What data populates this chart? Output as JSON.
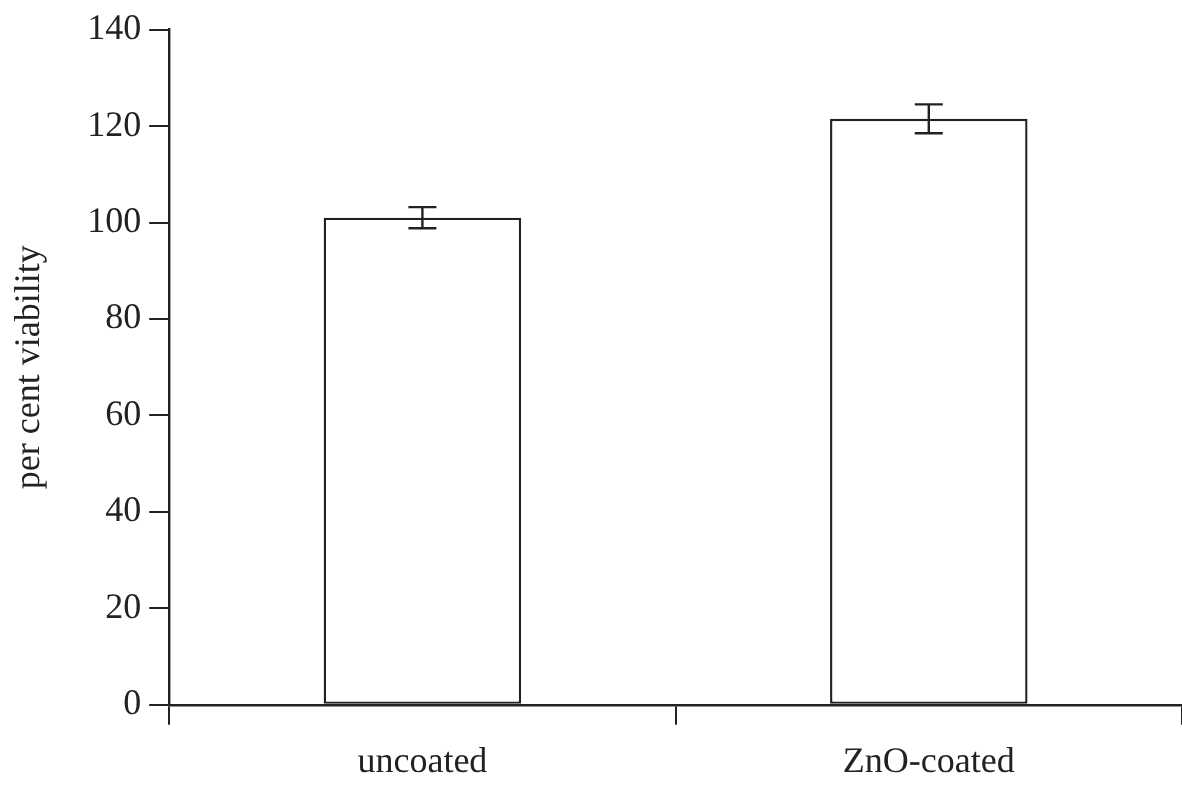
{
  "chart_data": {
    "type": "bar",
    "ylabel": "per cent viability",
    "categories": [
      "uncoated",
      "ZnO-coated"
    ],
    "series": [
      {
        "color": "#ffffff",
        "values": [
          101,
          121.5
        ],
        "errors": [
          2.2,
          3
        ]
      }
    ],
    "ylim": [
      0,
      140
    ],
    "yticks": [
      0,
      20,
      40,
      60,
      80,
      100,
      120,
      140
    ],
    "grid": false,
    "legend": false
  }
}
